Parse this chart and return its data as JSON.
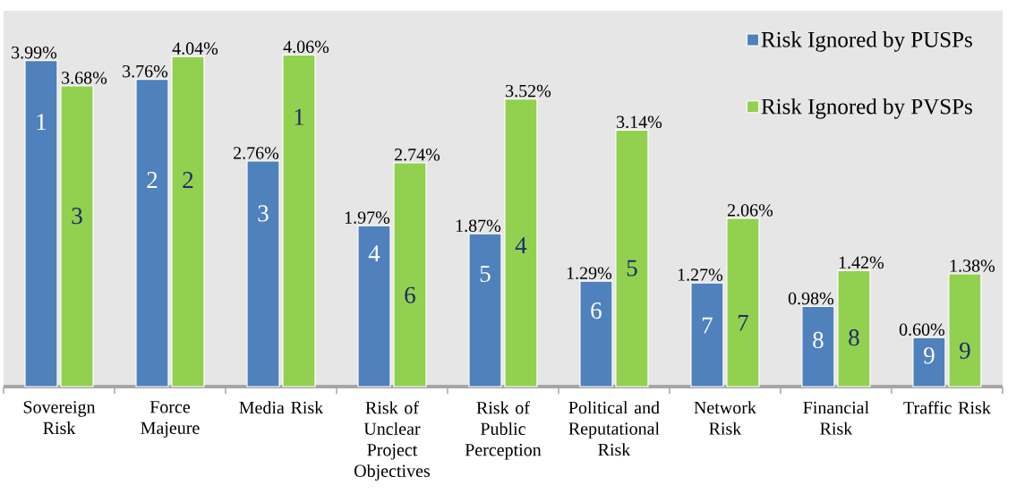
{
  "chart_data": {
    "type": "bar",
    "categories": [
      "Sovereign Risk",
      "Force Majeure",
      "Media Risk",
      "Risk of Unclear Project Objectives",
      "Risk of Public Perception",
      "Political and Reputational Risk",
      "Network Risk",
      "Financial Risk",
      "Traffic Risk"
    ],
    "series": [
      {
        "name": "Risk Ignored by PUSPs",
        "color": "#4f81bd",
        "values": [
          3.99,
          3.76,
          2.76,
          1.97,
          1.87,
          1.29,
          1.27,
          0.98,
          0.6
        ],
        "value_labels": [
          "3.99%",
          "3.76%",
          "2.76%",
          "1.97%",
          "1.87%",
          "1.29%",
          "1.27%",
          "0.98%",
          "0.60%"
        ]
      },
      {
        "name": "Risk Ignored by PVSPs",
        "color": "#92d050",
        "values": [
          3.68,
          4.04,
          4.06,
          2.74,
          3.52,
          3.14,
          2.06,
          1.42,
          1.38
        ],
        "value_labels": [
          "3.68%",
          "4.04%",
          "4.06%",
          "2.74%",
          "3.52%",
          "3.14%",
          "2.06%",
          "1.42%",
          "1.38%"
        ]
      }
    ],
    "ylim": [
      0,
      4.6
    ],
    "legend": "top right",
    "annotations": [
      {
        "text": "1",
        "x": "Sovereign Risk",
        "y": 3.24
      },
      {
        "text": "2",
        "x": "Force Majeure",
        "y": 2.53
      },
      {
        "text": "3",
        "x": "Media Risk",
        "y": 2.12
      },
      {
        "text": "4",
        "x": "Risk of Unclear Project Objectives",
        "y": 1.63
      },
      {
        "text": "5",
        "x": "Risk of Public Perception",
        "y": 1.38
      },
      {
        "text": "6",
        "x": "Political and Reputational Risk",
        "y": 0.93
      },
      {
        "text": "7",
        "x": "Network Risk",
        "y": 0.75
      },
      {
        "text": "8",
        "x": "Financial Risk",
        "y": 0.57
      },
      {
        "text": "9",
        "x": "Traffic Risk",
        "y": 0.38
      },
      {
        "text": "3",
        "x": "Sovereign Risk",
        "y": 2.09
      },
      {
        "text": "2",
        "x": "Force Majeure",
        "y": 2.53
      },
      {
        "text": "1",
        "x": "Media Risk",
        "y": 3.3
      },
      {
        "text": "6",
        "x": "Risk of Unclear Project Objectives",
        "y": 1.12
      },
      {
        "text": "4",
        "x": "Risk of Public Perception",
        "y": 1.73
      },
      {
        "text": "5",
        "x": "Political and Reputational Risk",
        "y": 1.45
      },
      {
        "text": "7",
        "x": "Network Risk",
        "y": 0.78
      },
      {
        "text": "8",
        "x": "Financial Risk",
        "y": 0.6
      },
      {
        "text": "9",
        "x": "Traffic Risk",
        "y": 0.44
      }
    ]
  }
}
